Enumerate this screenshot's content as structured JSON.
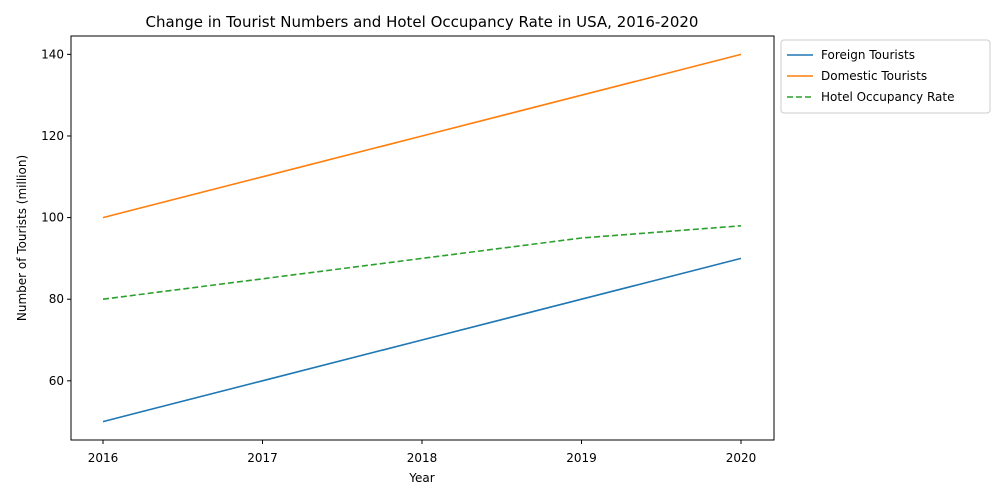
{
  "chart_data": {
    "type": "line",
    "title": "Change in Tourist Numbers and Hotel Occupancy Rate in USA, 2016-2020",
    "xlabel": "Year",
    "ylabel": "Number of Tourists (million)",
    "x": [
      2016,
      2017,
      2018,
      2019,
      2020
    ],
    "x_tick_labels": [
      "2016",
      "2017",
      "2018",
      "2019",
      "2020"
    ],
    "y_ticks": [
      60,
      80,
      100,
      120,
      140
    ],
    "y_tick_labels": [
      "60",
      "80",
      "100",
      "120",
      "140"
    ],
    "ylim": [
      45.5,
      144.5
    ],
    "grid": false,
    "legend_position": "outside-upper-right",
    "series": [
      {
        "name": "Foreign Tourists",
        "values": [
          50,
          60,
          70,
          80,
          90
        ],
        "color": "#1f77b4",
        "style": "solid"
      },
      {
        "name": "Domestic Tourists",
        "values": [
          100,
          110,
          120,
          130,
          140
        ],
        "color": "#ff7f0e",
        "style": "solid"
      },
      {
        "name": "Hotel Occupancy Rate",
        "values": [
          80,
          85,
          90,
          95,
          98
        ],
        "color": "#2ca02c",
        "style": "dashed"
      }
    ]
  }
}
